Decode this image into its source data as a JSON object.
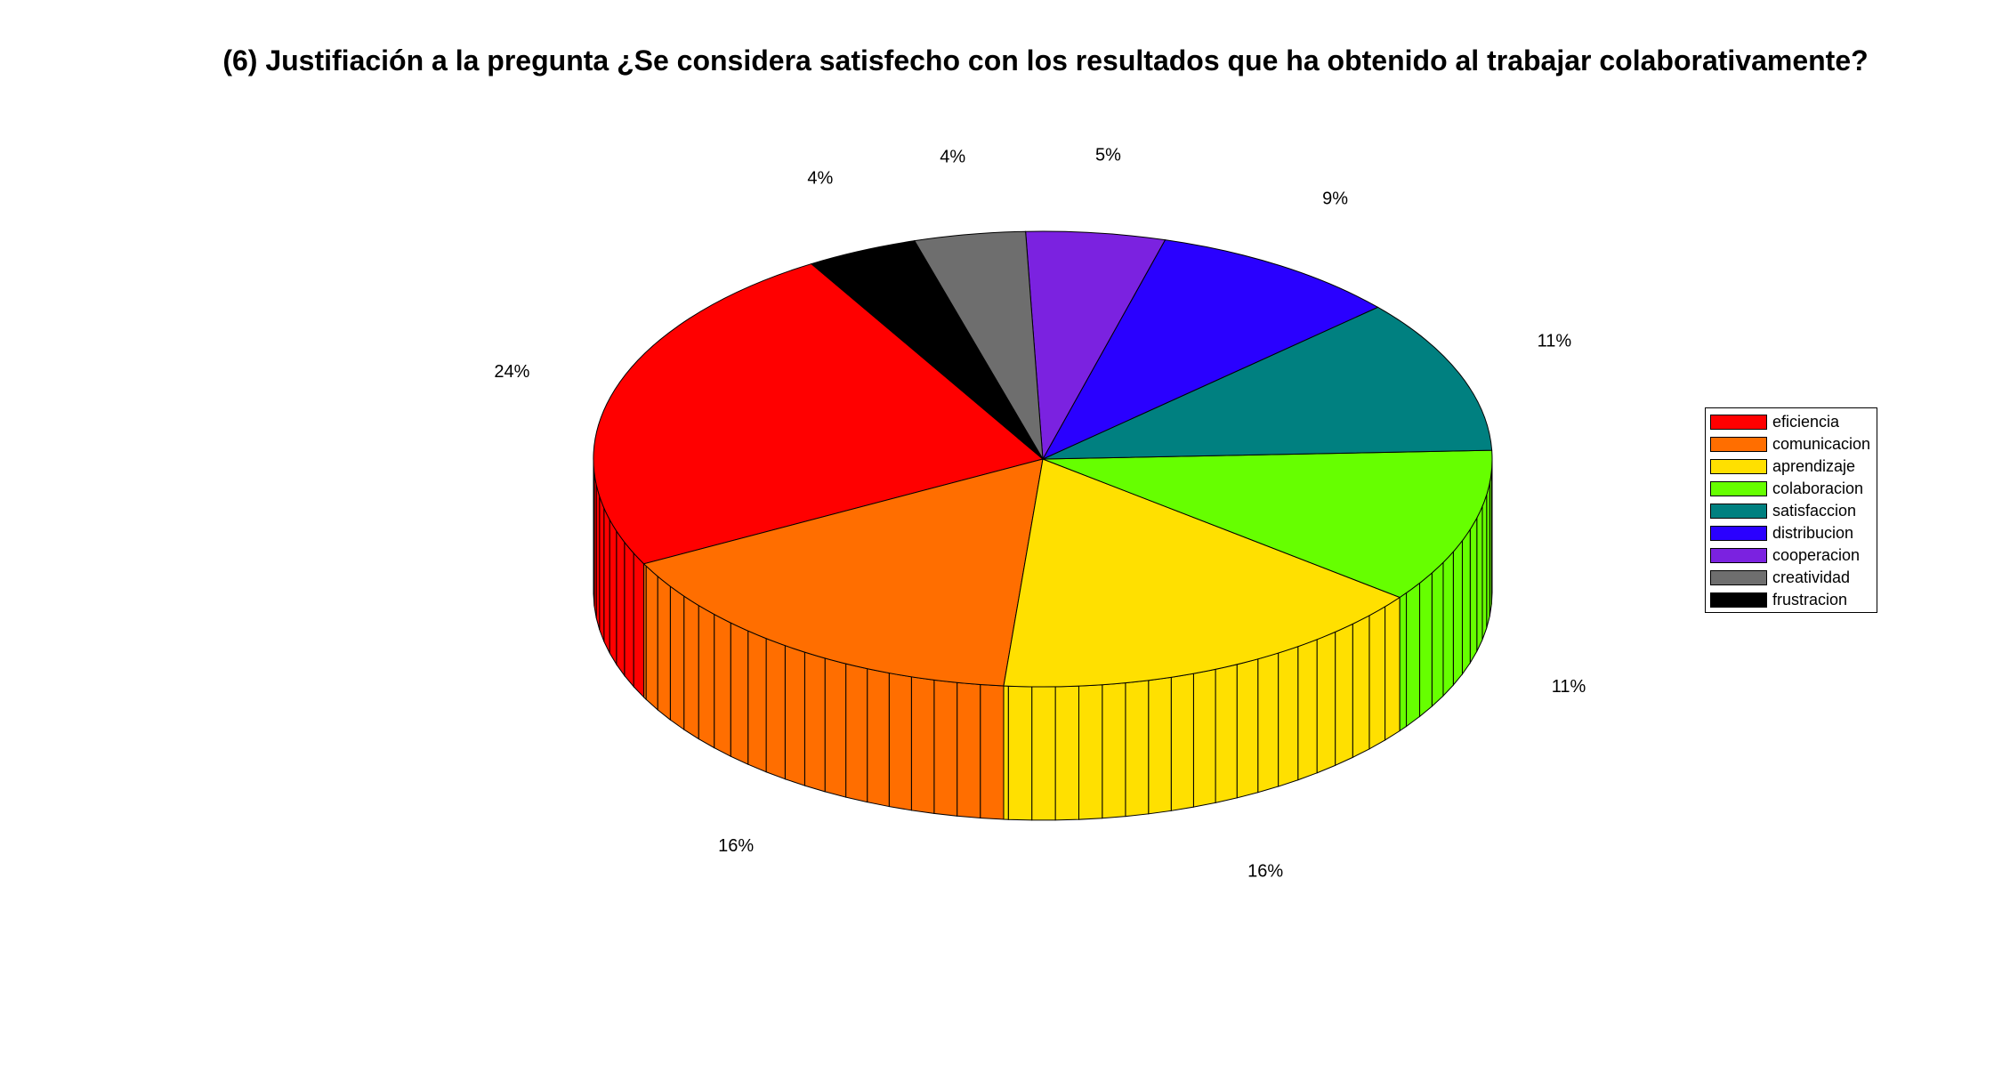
{
  "chart_data": {
    "type": "pie",
    "title": "(6) Justifiación a la pregunta ¿Se considera satisfecho con los resultados que ha obtenido al trabajar colaborativamente?",
    "style": "3d",
    "legend_position": "right",
    "slices": [
      {
        "name": "eficiencia",
        "value": 24,
        "label": "24%",
        "color": "#ff0000",
        "side_color": "#ff0000"
      },
      {
        "name": "comunicacion",
        "value": 16,
        "label": "16%",
        "color": "#ff6e00",
        "side_color": "#ff6e00"
      },
      {
        "name": "aprendizaje",
        "value": 16,
        "label": "16%",
        "color": "#ffe000",
        "side_color": "#ffe000"
      },
      {
        "name": "colaboracion",
        "value": 11,
        "label": "11%",
        "color": "#66ff00",
        "side_color": "#66ff00"
      },
      {
        "name": "satisfaccion",
        "value": 11,
        "label": "11%",
        "color": "#008080",
        "side_color": "#008080"
      },
      {
        "name": "distribucion",
        "value": 9,
        "label": "9%",
        "color": "#2a00ff",
        "side_color": "#2a00ff"
      },
      {
        "name": "cooperacion",
        "value": 5,
        "label": "5%",
        "color": "#7b22e0",
        "side_color": "#7b22e0"
      },
      {
        "name": "creatividad",
        "value": 4,
        "label": "4%",
        "color": "#6e6e6e",
        "side_color": "#6e6e6e"
      },
      {
        "name": "frustracion",
        "value": 4,
        "label": "4%",
        "color": "#000000",
        "side_color": "#000000"
      }
    ]
  }
}
